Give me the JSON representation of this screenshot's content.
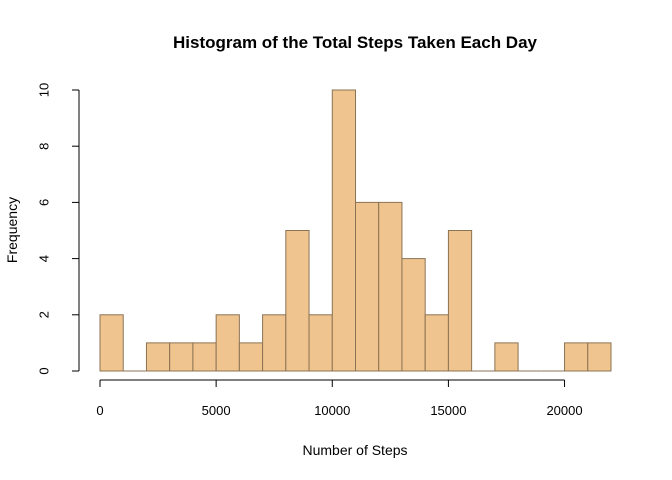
{
  "chart_data": {
    "type": "bar",
    "title": "Histogram of the Total Steps Taken Each Day",
    "xlabel": "Number of Steps",
    "ylabel": "Frequency",
    "bin_width": 1000,
    "bins": [
      {
        "start": 0,
        "end": 1000,
        "count": 2
      },
      {
        "start": 1000,
        "end": 2000,
        "count": 0
      },
      {
        "start": 2000,
        "end": 3000,
        "count": 1
      },
      {
        "start": 3000,
        "end": 4000,
        "count": 1
      },
      {
        "start": 4000,
        "end": 5000,
        "count": 1
      },
      {
        "start": 5000,
        "end": 6000,
        "count": 2
      },
      {
        "start": 6000,
        "end": 7000,
        "count": 1
      },
      {
        "start": 7000,
        "end": 8000,
        "count": 2
      },
      {
        "start": 8000,
        "end": 9000,
        "count": 5
      },
      {
        "start": 9000,
        "end": 10000,
        "count": 2
      },
      {
        "start": 10000,
        "end": 11000,
        "count": 10
      },
      {
        "start": 11000,
        "end": 12000,
        "count": 6
      },
      {
        "start": 12000,
        "end": 13000,
        "count": 6
      },
      {
        "start": 13000,
        "end": 14000,
        "count": 4
      },
      {
        "start": 14000,
        "end": 15000,
        "count": 2
      },
      {
        "start": 15000,
        "end": 16000,
        "count": 5
      },
      {
        "start": 16000,
        "end": 17000,
        "count": 0
      },
      {
        "start": 17000,
        "end": 18000,
        "count": 1
      },
      {
        "start": 18000,
        "end": 19000,
        "count": 0
      },
      {
        "start": 19000,
        "end": 20000,
        "count": 0
      },
      {
        "start": 20000,
        "end": 21000,
        "count": 1
      },
      {
        "start": 21000,
        "end": 22000,
        "count": 1
      }
    ],
    "xlim": [
      0,
      22000
    ],
    "ylim": [
      0,
      10
    ],
    "x_ticks": [
      0,
      5000,
      10000,
      15000,
      20000
    ],
    "y_ticks": [
      0,
      2,
      4,
      6,
      8,
      10
    ],
    "bar_fill": "#f0c48e",
    "bar_stroke": "#8b7355",
    "grid": false,
    "legend": "none"
  }
}
